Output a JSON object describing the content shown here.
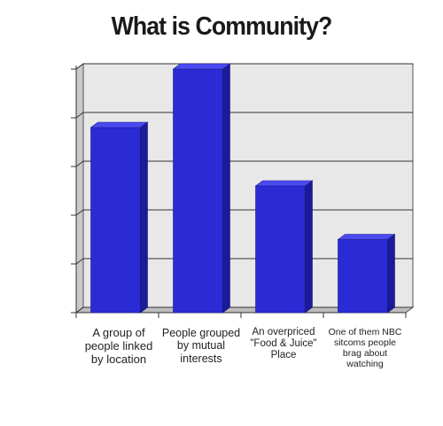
{
  "chart_data": {
    "type": "bar",
    "title": "What is Community?",
    "xlabel": "",
    "ylabel": "",
    "categories": [
      "A group of people linked by location",
      "People grouped by mutual interests",
      "An overpriced \"Food & Juice\" Place",
      "One of them NBC sitcoms people brag about watching"
    ],
    "values": [
      3.8,
      5.0,
      2.6,
      1.5
    ],
    "ylim": [
      0,
      5
    ],
    "grid": true,
    "bar_color": "#2b2bd6",
    "legend": "none"
  }
}
